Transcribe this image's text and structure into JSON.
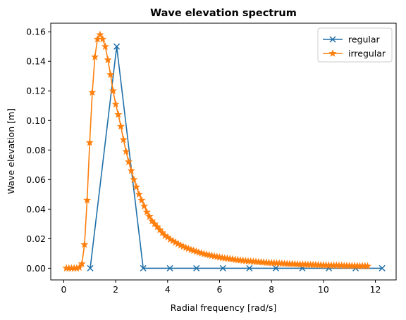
{
  "chart_data": {
    "type": "line",
    "title": "Wave elevation spectrum",
    "xlabel": "Radial frequency [rad/s]",
    "ylabel": "Wave elevation [m]",
    "xlim": [
      -0.5,
      12.8
    ],
    "ylim": [
      -0.0079,
      0.1658
    ],
    "xticks": [
      0,
      2,
      4,
      6,
      8,
      10,
      12
    ],
    "yticks": [
      0.0,
      0.02,
      0.04,
      0.06,
      0.08,
      0.1,
      0.12,
      0.14,
      0.16
    ],
    "xtick_labels": [
      "0",
      "2",
      "4",
      "6",
      "8",
      "10",
      "12"
    ],
    "ytick_labels": [
      "0.00",
      "0.02",
      "0.04",
      "0.06",
      "0.08",
      "0.10",
      "0.12",
      "0.14",
      "0.16"
    ],
    "grid": false,
    "legend_position": "top-right",
    "series": [
      {
        "name": "regular",
        "color": "#1f6fa8",
        "marker": "x",
        "x": [
          1.02,
          2.04,
          3.06,
          4.09,
          5.11,
          6.13,
          7.15,
          8.17,
          9.19,
          10.21,
          11.24,
          12.26
        ],
        "y": [
          0.0,
          0.15,
          0.0,
          0.0,
          0.0,
          0.0,
          0.0,
          0.0,
          0.0,
          0.0,
          0.0,
          0.0
        ]
      },
      {
        "name": "irregular",
        "color": "#ff7f0e",
        "marker": "star",
        "x": [
          0.1,
          0.2,
          0.3,
          0.4,
          0.5,
          0.6,
          0.7,
          0.8,
          0.9,
          1.0,
          1.1,
          1.2,
          1.3,
          1.4,
          1.5,
          1.6,
          1.7,
          1.8,
          1.9,
          2.0,
          2.1,
          2.2,
          2.3,
          2.4,
          2.5,
          2.6,
          2.7,
          2.8,
          2.9,
          3.0,
          3.1,
          3.2,
          3.3,
          3.4,
          3.5,
          3.6,
          3.7,
          3.8,
          3.9,
          4.0,
          4.1,
          4.2,
          4.3,
          4.4,
          4.5,
          4.6,
          4.7,
          4.8,
          4.9,
          5.0,
          5.1,
          5.2,
          5.3,
          5.4,
          5.5,
          5.6,
          5.7,
          5.8,
          5.9,
          6.0,
          6.1,
          6.2,
          6.3,
          6.4,
          6.5,
          6.6,
          6.7,
          6.8,
          6.9,
          7.0,
          7.1,
          7.2,
          7.3,
          7.4,
          7.5,
          7.6,
          7.7,
          7.8,
          7.9,
          8.0,
          8.1,
          8.2,
          8.3,
          8.4,
          8.5,
          8.6,
          8.7,
          8.8,
          8.9,
          9.0,
          9.1,
          9.2,
          9.3,
          9.4,
          9.5,
          9.6,
          9.7,
          9.8,
          9.9,
          10.0,
          10.1,
          10.2,
          10.3,
          10.4,
          10.5,
          10.6,
          10.7,
          10.8,
          10.9,
          11.0,
          11.1,
          11.2,
          11.3,
          11.4,
          11.5,
          11.6,
          11.7
        ],
        "y": [
          0.0,
          0.0,
          0.0,
          0.0,
          0.0,
          0.0005,
          0.003,
          0.016,
          0.046,
          0.085,
          0.119,
          0.143,
          0.155,
          0.158,
          0.155,
          0.15,
          0.141,
          0.131,
          0.12,
          0.111,
          0.104,
          0.096,
          0.087,
          0.079,
          0.072,
          0.066,
          0.06,
          0.055,
          0.05,
          0.046,
          0.042,
          0.038,
          0.035,
          0.032,
          0.03,
          0.028,
          0.026,
          0.024,
          0.022,
          0.021,
          0.0195,
          0.0185,
          0.0175,
          0.0165,
          0.0155,
          0.0147,
          0.0139,
          0.0132,
          0.0125,
          0.0119,
          0.0113,
          0.0107,
          0.0102,
          0.0097,
          0.0093,
          0.0089,
          0.0085,
          0.0081,
          0.0078,
          0.0074,
          0.0071,
          0.0068,
          0.0066,
          0.0063,
          0.0061,
          0.0058,
          0.0056,
          0.0054,
          0.0052,
          0.005,
          0.0048,
          0.0047,
          0.0045,
          0.0044,
          0.0042,
          0.0041,
          0.004,
          0.0038,
          0.0037,
          0.0036,
          0.0035,
          0.0034,
          0.0033,
          0.0032,
          0.0031,
          0.003,
          0.0029,
          0.0029,
          0.0028,
          0.0027,
          0.0026,
          0.0026,
          0.0025,
          0.0024,
          0.0024,
          0.0023,
          0.0023,
          0.0022,
          0.0021,
          0.0021,
          0.002,
          0.002,
          0.0019,
          0.0019,
          0.0019,
          0.0018,
          0.0018,
          0.0017,
          0.0017,
          0.0017,
          0.0016,
          0.0016,
          0.0016,
          0.0015,
          0.0015,
          0.0015,
          0.0014
        ]
      }
    ]
  }
}
